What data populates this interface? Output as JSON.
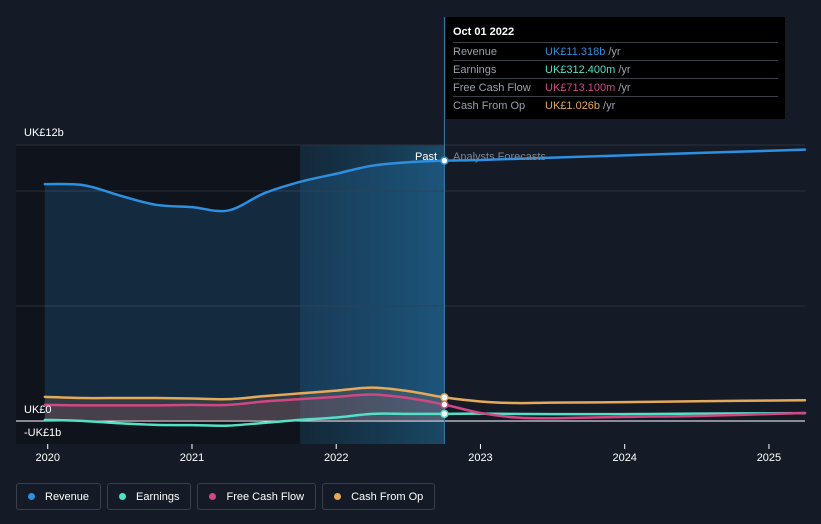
{
  "chart_data": {
    "type": "line",
    "y_axis_labels": [
      "UK£12b",
      "UK£0",
      "-UK£1b"
    ],
    "x_ticks": [
      {
        "label": "2020",
        "x": 2020.0
      },
      {
        "label": "2021",
        "x": 2021.0
      },
      {
        "label": "2022",
        "x": 2022.0
      },
      {
        "label": "2023",
        "x": 2023.0
      },
      {
        "label": "2024",
        "x": 2024.0
      },
      {
        "label": "2025",
        "x": 2025.0
      }
    ],
    "x_range": [
      2019.78,
      2025.25
    ],
    "ylim": [
      -1.0,
      12.0
    ],
    "highlight_start": 2021.75,
    "divider_x": 2022.75,
    "past_label": "Past",
    "forecast_label": "Analysts Forecasts",
    "series": [
      {
        "name": "Revenue",
        "color": "#2d8fe0",
        "fill": true,
        "points": [
          [
            2019.98,
            10.3
          ],
          [
            2020.25,
            10.25
          ],
          [
            2020.5,
            9.8
          ],
          [
            2020.75,
            9.4
          ],
          [
            2021.0,
            9.3
          ],
          [
            2021.25,
            9.15
          ],
          [
            2021.5,
            9.9
          ],
          [
            2021.75,
            10.4
          ],
          [
            2022.0,
            10.75
          ],
          [
            2022.25,
            11.1
          ],
          [
            2022.5,
            11.25
          ],
          [
            2022.75,
            11.318
          ],
          [
            2023.0,
            11.35
          ],
          [
            2023.5,
            11.45
          ],
          [
            2024.0,
            11.55
          ],
          [
            2024.5,
            11.65
          ],
          [
            2025.25,
            11.8
          ]
        ]
      },
      {
        "name": "Earnings",
        "color": "#53e0c6",
        "fill": false,
        "points": [
          [
            2019.98,
            0.05
          ],
          [
            2020.25,
            0.0
          ],
          [
            2020.5,
            -0.1
          ],
          [
            2020.75,
            -0.17
          ],
          [
            2021.0,
            -0.18
          ],
          [
            2021.25,
            -0.2
          ],
          [
            2021.5,
            -0.08
          ],
          [
            2021.75,
            0.05
          ],
          [
            2022.0,
            0.15
          ],
          [
            2022.25,
            0.31
          ],
          [
            2022.5,
            0.312
          ],
          [
            2022.75,
            0.312
          ],
          [
            2023.0,
            0.32
          ],
          [
            2023.5,
            0.3
          ],
          [
            2024.0,
            0.3
          ],
          [
            2024.5,
            0.32
          ],
          [
            2025.25,
            0.34
          ]
        ]
      },
      {
        "name": "Free Cash Flow",
        "color": "#d04785",
        "fill": true,
        "points": [
          [
            2019.98,
            0.7
          ],
          [
            2020.25,
            0.68
          ],
          [
            2020.5,
            0.68
          ],
          [
            2020.75,
            0.68
          ],
          [
            2021.0,
            0.7
          ],
          [
            2021.25,
            0.7
          ],
          [
            2021.5,
            0.85
          ],
          [
            2021.75,
            0.95
          ],
          [
            2022.0,
            1.05
          ],
          [
            2022.25,
            1.15
          ],
          [
            2022.5,
            1.0
          ],
          [
            2022.75,
            0.713
          ],
          [
            2023.0,
            0.35
          ],
          [
            2023.25,
            0.15
          ],
          [
            2023.5,
            0.12
          ],
          [
            2024.0,
            0.18
          ],
          [
            2024.5,
            0.22
          ],
          [
            2025.25,
            0.35
          ]
        ]
      },
      {
        "name": "Cash From Op",
        "color": "#e5a95a",
        "fill": true,
        "points": [
          [
            2019.98,
            1.05
          ],
          [
            2020.25,
            1.0
          ],
          [
            2020.5,
            1.0
          ],
          [
            2020.75,
            1.0
          ],
          [
            2021.0,
            0.98
          ],
          [
            2021.25,
            0.95
          ],
          [
            2021.5,
            1.08
          ],
          [
            2021.75,
            1.2
          ],
          [
            2022.0,
            1.32
          ],
          [
            2022.25,
            1.45
          ],
          [
            2022.5,
            1.3
          ],
          [
            2022.75,
            1.026
          ],
          [
            2023.0,
            0.85
          ],
          [
            2023.25,
            0.78
          ],
          [
            2023.5,
            0.8
          ],
          [
            2024.0,
            0.82
          ],
          [
            2024.5,
            0.86
          ],
          [
            2025.25,
            0.9
          ]
        ]
      }
    ],
    "markers_x": 2022.75
  },
  "tooltip": {
    "date": "Oct 01 2022",
    "rows": [
      {
        "name": "Revenue",
        "value": "UK£11.318b",
        "unit": "/yr",
        "color": "#2d8fe0"
      },
      {
        "name": "Earnings",
        "value": "UK£312.400m",
        "unit": "/yr",
        "color": "#53e0c6"
      },
      {
        "name": "Free Cash Flow",
        "value": "UK£713.100m",
        "unit": "/yr",
        "color": "#d04785"
      },
      {
        "name": "Cash From Op",
        "value": "UK£1.026b",
        "unit": "/yr",
        "color": "#e5a95a"
      }
    ]
  },
  "legend": [
    {
      "label": "Revenue",
      "color": "#2d8fe0"
    },
    {
      "label": "Earnings",
      "color": "#53e0c6"
    },
    {
      "label": "Free Cash Flow",
      "color": "#d04785"
    },
    {
      "label": "Cash From Op",
      "color": "#e5a95a"
    }
  ]
}
